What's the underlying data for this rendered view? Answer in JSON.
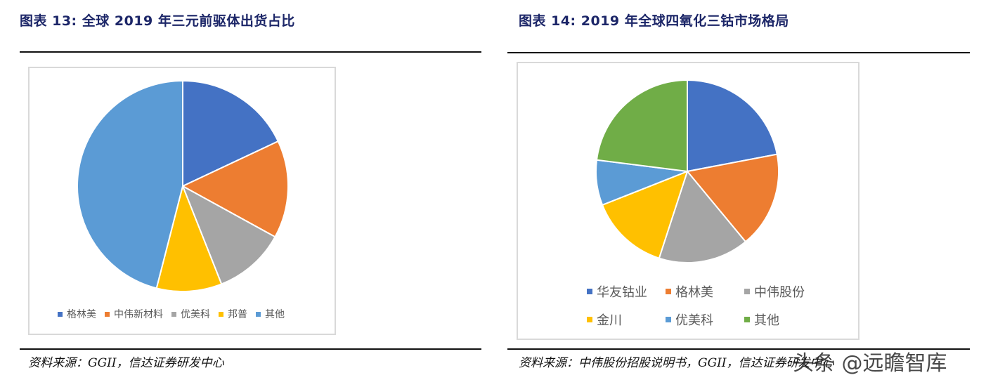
{
  "figures": [
    {
      "title": "图表 13:  全球 2019 年三元前驱体出货占比",
      "source": "资料来源：GGII，信达证券研发中心"
    },
    {
      "title": "图表 14:    2019 年全球四氧化三钴市场格局",
      "source": "资料来源：中伟股份招股说明书，GGII，信达证券研发中心"
    }
  ],
  "watermark": "头条 @远瞻智库",
  "chart_data": [
    {
      "type": "pie",
      "title": "",
      "start_angle_deg": 0,
      "direction": "clockwise",
      "legend_position": "bottom",
      "slices": [
        {
          "label": "格林美",
          "value": 18,
          "color": "#4472C4"
        },
        {
          "label": "中伟新材料",
          "value": 15,
          "color": "#ED7D31"
        },
        {
          "label": "优美科",
          "value": 11,
          "color": "#A5A5A5"
        },
        {
          "label": "邦普",
          "value": 10,
          "color": "#FFC000"
        },
        {
          "label": "其他",
          "value": 46,
          "color": "#5B9BD5"
        }
      ]
    },
    {
      "type": "pie",
      "title": "",
      "start_angle_deg": 0,
      "direction": "clockwise",
      "legend_position": "bottom",
      "slices": [
        {
          "label": "华友钴业",
          "value": 22,
          "color": "#4472C4"
        },
        {
          "label": "格林美",
          "value": 17,
          "color": "#ED7D31"
        },
        {
          "label": "中伟股份",
          "value": 16,
          "color": "#A5A5A5"
        },
        {
          "label": "金川",
          "value": 14,
          "color": "#FFC000"
        },
        {
          "label": "优美科",
          "value": 8,
          "color": "#5B9BD5"
        },
        {
          "label": "其他",
          "value": 23,
          "color": "#70AD47"
        }
      ]
    }
  ]
}
